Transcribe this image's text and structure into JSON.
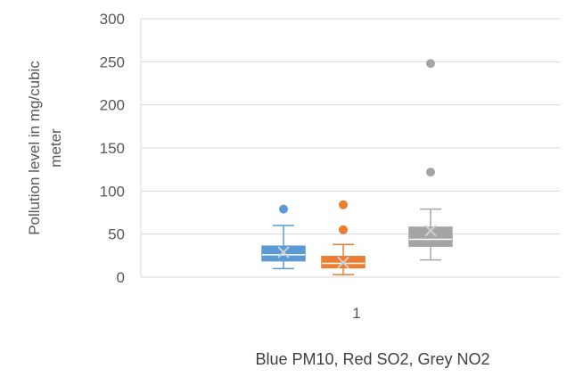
{
  "chart_data": {
    "type": "box",
    "title": "",
    "xlabel": "Blue PM10, Red SO2, Grey NO2",
    "ylabel": "Pollution level in mg/cubic meter",
    "ylim": [
      0,
      300
    ],
    "yticks": [
      0,
      50,
      100,
      150,
      200,
      250,
      300
    ],
    "ytick_labels": [
      "0",
      "50",
      "100",
      "150",
      "200",
      "250",
      "300"
    ],
    "categories": [
      "1"
    ],
    "grid": true,
    "legend": "none",
    "series": [
      {
        "color": "#5b9bd5",
        "whisker_low": 10,
        "q1": 19,
        "median": 26,
        "q3": 36,
        "whisker_high": 60,
        "mean": 29,
        "outliers": [
          79
        ]
      },
      {
        "color": "#ed7d31",
        "whisker_low": 3,
        "q1": 11,
        "median": 16,
        "q3": 24,
        "whisker_high": 38,
        "mean": 17,
        "outliers": [
          55,
          84
        ]
      },
      {
        "color": "#a5a5a5",
        "whisker_low": 20,
        "q1": 36,
        "median": 44,
        "q3": 58,
        "whisker_high": 79,
        "mean": 54,
        "outliers": [
          122,
          248
        ]
      }
    ]
  }
}
